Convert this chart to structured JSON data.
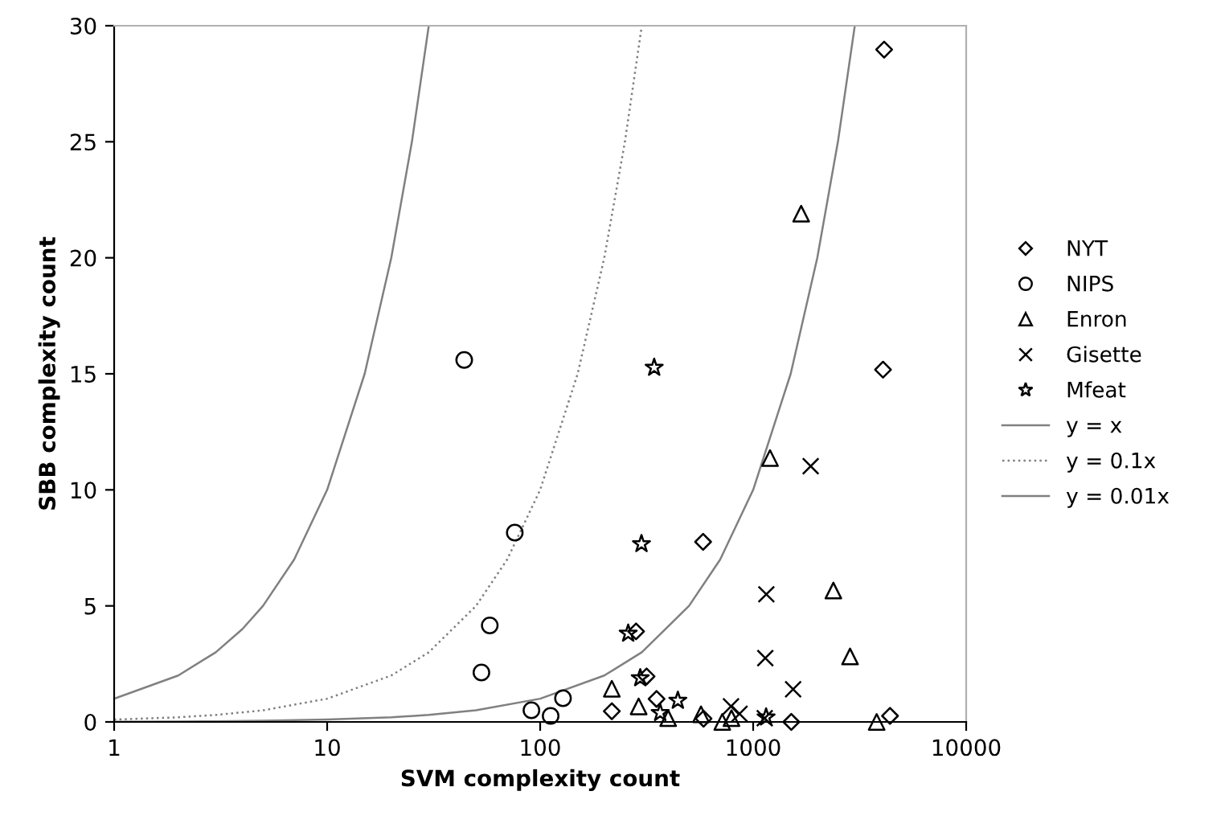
{
  "chart_data": {
    "type": "scatter",
    "xlabel": "SVM complexity count",
    "ylabel": "SBB complexity count",
    "log": "x",
    "xlim": [
      1,
      10000
    ],
    "xticks": [
      1,
      10,
      100,
      1000,
      10000
    ],
    "ylim": [
      0,
      30
    ],
    "yticks": [
      0,
      5,
      10,
      15,
      20,
      25,
      30
    ],
    "grid": false,
    "legend": "right",
    "series": [
      {
        "name": "NYT",
        "color": "#000000",
        "marker": "diamond",
        "x": [
          582,
          282,
          316,
          217,
          352,
          585,
          4120,
          4070,
          1510,
          4390
        ],
        "values": [
          7.76,
          3.9,
          1.96,
          0.46,
          0.99,
          0.14,
          28.97,
          15.18,
          0,
          0.26
        ]
      },
      {
        "name": "NIPS",
        "color": "#000000",
        "marker": "circle",
        "x": [
          76,
          58,
          53,
          91,
          112,
          128,
          44
        ],
        "values": [
          8.16,
          4.16,
          2.13,
          0.5,
          0.26,
          1.02,
          15.6
        ]
      },
      {
        "name": "Enron",
        "color": "#000000",
        "marker": "triangle",
        "x": [
          217,
          290,
          399,
          569,
          716,
          791,
          1680,
          1200,
          2380,
          2850,
          3800
        ],
        "values": [
          1.43,
          0.67,
          0.16,
          0.33,
          0,
          0.16,
          21.9,
          11.37,
          5.66,
          2.82,
          0
        ]
      },
      {
        "name": "Gisette",
        "color": "#000000",
        "marker": "cross",
        "x": [
          1862,
          1153,
          1140,
          1540,
          787,
          863,
          1133
        ],
        "values": [
          11.02,
          5.5,
          2.75,
          1.41,
          0.67,
          0.35,
          0.16
        ]
      },
      {
        "name": "Mfeat",
        "color": "#000000",
        "marker": "star",
        "x": [
          299,
          259,
          295,
          443,
          366,
          343,
          1150
        ],
        "values": [
          7.67,
          3.81,
          1.89,
          0.92,
          0.39,
          15.27,
          0.2
        ]
      },
      {
        "name": "y = x",
        "type": "line",
        "color": "#808080",
        "line_style": "solid",
        "x": [
          1,
          2,
          3,
          4,
          5,
          7,
          10,
          15,
          20,
          25,
          30
        ],
        "values": [
          1,
          2,
          3,
          4,
          5,
          7,
          10,
          15,
          20,
          25,
          30
        ]
      },
      {
        "name": "y = 0.1x",
        "type": "line",
        "color": "#808080",
        "line_style": "dotted",
        "x": [
          1,
          2,
          3,
          5,
          10,
          20,
          30,
          50,
          70,
          100,
          150,
          200,
          250,
          300
        ],
        "values": [
          0.1,
          0.2,
          0.3,
          0.5,
          1,
          2,
          3,
          5,
          7,
          10,
          15,
          20,
          25,
          30
        ]
      },
      {
        "name": "y = 0.01x",
        "type": "line",
        "color": "#808080",
        "line_style": "solid",
        "x": [
          1,
          2,
          3,
          5,
          10,
          20,
          30,
          50,
          100,
          200,
          300,
          500,
          700,
          1000,
          1500,
          2000,
          2500,
          3000
        ],
        "values": [
          0.01,
          0.02,
          0.03,
          0.05,
          0.1,
          0.2,
          0.3,
          0.5,
          1,
          2,
          3,
          5,
          7,
          10,
          15,
          20,
          25,
          30
        ]
      }
    ]
  }
}
